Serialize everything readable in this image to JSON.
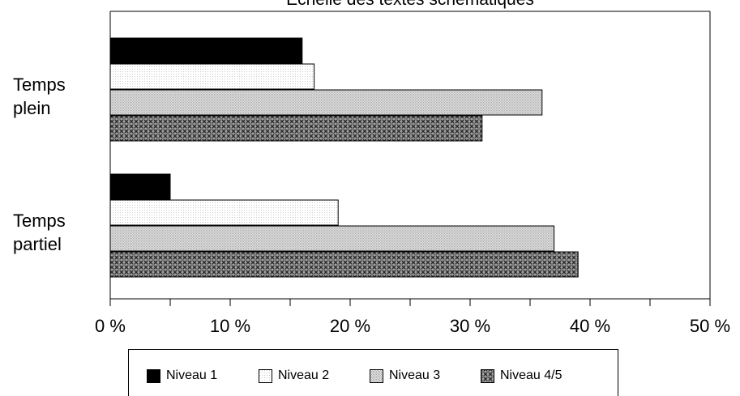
{
  "chart_data": {
    "type": "bar",
    "orientation": "horizontal",
    "title": "Echelle des textes schématiques",
    "categories": [
      "Temps\nplein",
      "Temps\npartiel"
    ],
    "series": [
      {
        "name": "Niveau 1",
        "values": [
          16,
          5
        ],
        "color": "#000000",
        "pattern": "solid"
      },
      {
        "name": "Niveau 2",
        "values": [
          17,
          19
        ],
        "color": "#ffffff",
        "pattern": "fine-dots"
      },
      {
        "name": "Niveau 3",
        "values": [
          36,
          37
        ],
        "color": "#d8d8d8",
        "pattern": "light-grey"
      },
      {
        "name": "Niveau 4/5",
        "values": [
          31,
          39
        ],
        "color": "#555555",
        "pattern": "crosshatch"
      }
    ],
    "xlim": [
      0,
      50
    ],
    "xticks": [
      "0 %",
      "10 %",
      "20 %",
      "30 %",
      "40 %",
      "50 %"
    ],
    "xlabel": "",
    "ylabel": "",
    "grid": false,
    "legend_position": "bottom"
  }
}
